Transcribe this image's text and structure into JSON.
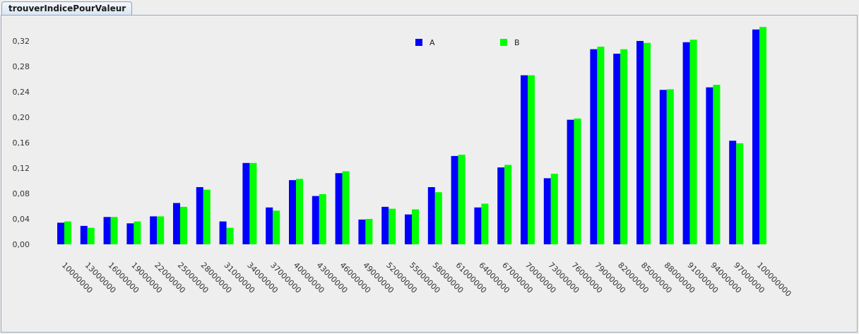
{
  "window": {
    "tab_label": "trouverIndicePourValeur"
  },
  "chart_data": {
    "type": "bar",
    "title": "",
    "xlabel": "",
    "ylabel": "",
    "ylim": [
      0,
      0.34
    ],
    "yticks": [
      "0,00",
      "0,04",
      "0,08",
      "0,12",
      "0,16",
      "0,20",
      "0,24",
      "0,28",
      "0,32"
    ],
    "ytick_values": [
      0,
      0.04,
      0.08,
      0.12,
      0.16,
      0.2,
      0.24,
      0.28,
      0.32
    ],
    "grid": false,
    "legend_position": "top-center",
    "categories": [
      "10000000",
      "13000000",
      "16000000",
      "19000000",
      "22000000",
      "25000000",
      "28000000",
      "31000000",
      "34000000",
      "37000000",
      "40000000",
      "43000000",
      "46000000",
      "49000000",
      "52000000",
      "55000000",
      "58000000",
      "61000000",
      "64000000",
      "67000000",
      "70000000",
      "73000000",
      "76000000",
      "79000000",
      "82000000",
      "85000000",
      "88000000",
      "91000000",
      "94000000",
      "97000000",
      "100000000"
    ],
    "series": [
      {
        "name": "A",
        "color": "#0000ff",
        "values": [
          0.034,
          0.029,
          0.043,
          0.033,
          0.044,
          0.065,
          0.09,
          0.036,
          0.128,
          0.058,
          0.101,
          0.076,
          0.112,
          0.039,
          0.059,
          0.047,
          0.09,
          0.139,
          0.058,
          0.121,
          0.266,
          0.104,
          0.196,
          0.307,
          0.3,
          0.32,
          0.243,
          0.318,
          0.247,
          0.163,
          0.338
        ]
      },
      {
        "name": "B",
        "color": "#00ff00",
        "values": [
          0.036,
          0.026,
          0.043,
          0.036,
          0.044,
          0.059,
          0.086,
          0.026,
          0.128,
          0.053,
          0.103,
          0.079,
          0.115,
          0.04,
          0.056,
          0.055,
          0.082,
          0.141,
          0.064,
          0.125,
          0.266,
          0.111,
          0.198,
          0.311,
          0.307,
          0.317,
          0.244,
          0.322,
          0.251,
          0.159,
          0.342
        ]
      }
    ]
  }
}
